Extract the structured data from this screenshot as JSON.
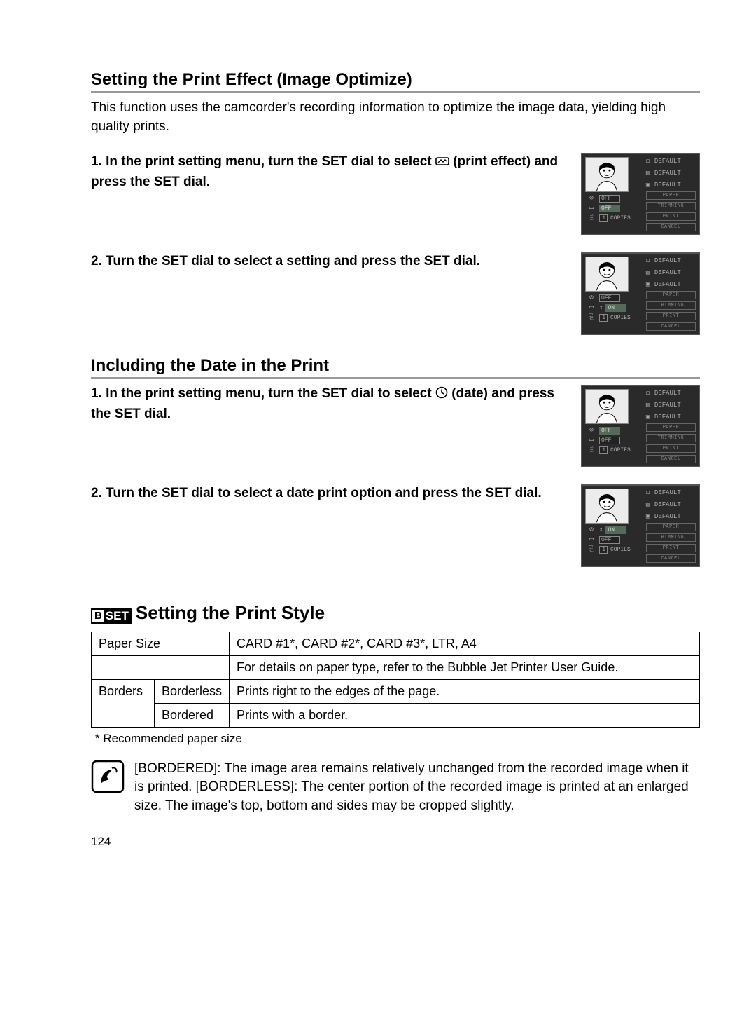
{
  "sections": {
    "printEffect": {
      "heading": "Setting the Print Effect (Image Optimize)",
      "intro": "This function uses the camcorder's recording information to optimize the image data, yielding high quality prints.",
      "step1_a": "1. In the print setting menu, turn the SET dial to select",
      "step1_b": "(print effect) and press the SET dial.",
      "step2": "2. Turn the SET dial to select a setting and press the SET dial."
    },
    "dateInPrint": {
      "heading": "Including the Date in the Print",
      "step1_a": "1. In the print setting menu, turn the SET dial to select",
      "step1_b": "(date) and press the SET dial.",
      "step2": "2. Turn the SET dial to select a date print option and press the SET dial."
    },
    "printStyle": {
      "heading": "Setting the Print Style",
      "rows": {
        "paperSize_label": "Paper Size",
        "paperSize_value": "CARD #1*, CARD #2*, CARD #3*, LTR, A4",
        "paperSize_note": "For details on paper type, refer to the Bubble Jet Printer User Guide.",
        "borders_label": "Borders",
        "borderless_label": "Borderless",
        "borderless_desc": "Prints right to the edges of the page.",
        "bordered_label": "Bordered",
        "bordered_desc": "Prints with a border."
      },
      "footnote": "* Recommended paper size",
      "note": "[BORDERED]: The image area remains relatively unchanged from the recorded image when it is printed. [BORDERLESS]: The center portion of the recorded image is printed at an enlarged size. The image's top, bottom and sides may be cropped slightly."
    }
  },
  "lcd": {
    "defaultLabel": "DEFAULT",
    "buttons": {
      "paper": "PAPER",
      "trimming": "TRIMMING",
      "print": "PRINT",
      "cancel": "CANCEL"
    },
    "opts": {
      "off": "OFF",
      "on": "ON",
      "copies_1": "1",
      "copies_label": "COPIES"
    },
    "screens": {
      "s1": {
        "row1_sel": false,
        "row1_val": "OFF",
        "row2_sel": true,
        "row2_val": "OFF",
        "row2_arrows": false
      },
      "s2": {
        "row1_sel": false,
        "row1_val": "OFF",
        "row2_sel": true,
        "row2_val": "ON",
        "row2_arrows": true
      },
      "s3": {
        "row1_sel": true,
        "row1_val": "OFF",
        "row2_sel": false,
        "row2_val": "OFF",
        "row2_arrows": false
      },
      "s4": {
        "row1_sel": true,
        "row1_val": "ON",
        "row1_arrows": true,
        "row2_sel": false,
        "row2_val": "OFF"
      }
    }
  },
  "pageNumber": "124",
  "colors": {
    "rule": "#999999",
    "lcd_bg": "#2a2a2a",
    "sel_bg": "#556b5a"
  }
}
